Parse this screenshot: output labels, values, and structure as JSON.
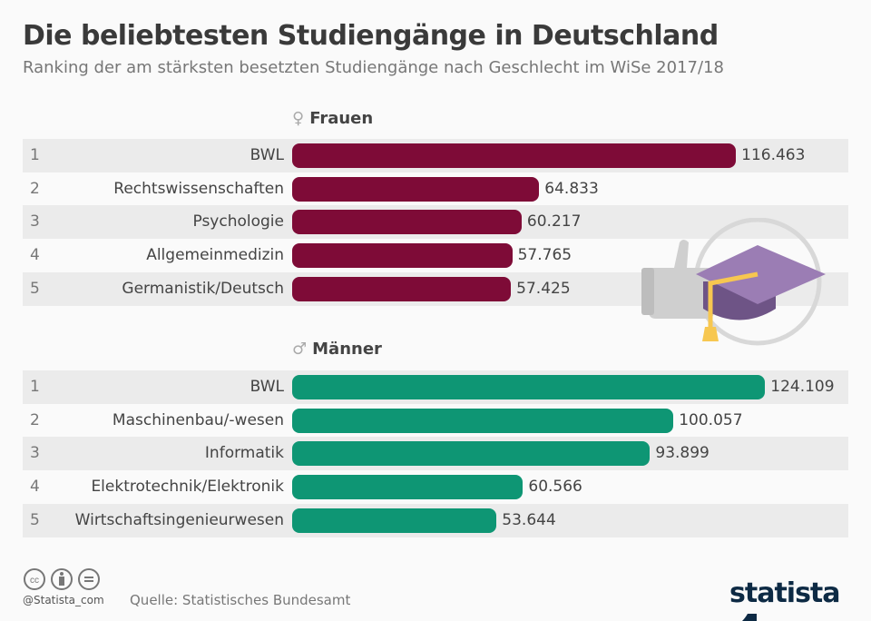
{
  "title": "Die beliebtesten Studiengänge in Deutschland",
  "subtitle": "Ranking der am stärksten besetzten Studiengänge nach Geschlecht im WiSe 2017/18",
  "footer": {
    "handle": "@Statista_com",
    "source": "Quelle: Statistisches Bundesamt",
    "logo": "statista"
  },
  "chart_data": [
    {
      "type": "bar",
      "orientation": "horizontal",
      "title": "Frauen",
      "icon": "female-symbol-icon",
      "color": "#7e0b37",
      "ranks": [
        "1",
        "2",
        "3",
        "4",
        "5"
      ],
      "categories": [
        "BWL",
        "Rechtswissenschaften",
        "Psychologie",
        "Allgemeinmedizin",
        "Germanistik/Deutsch"
      ],
      "values": [
        116463,
        64833,
        60217,
        57765,
        57425
      ],
      "labels": [
        "116.463",
        "64.833",
        "60.217",
        "57.765",
        "57.425"
      ]
    },
    {
      "type": "bar",
      "orientation": "horizontal",
      "title": "Männer",
      "icon": "male-symbol-icon",
      "color": "#0e9674",
      "ranks": [
        "1",
        "2",
        "3",
        "4",
        "5"
      ],
      "categories": [
        "BWL",
        "Maschinenbau/-wesen",
        "Informatik",
        "Elektrotechnik/Elektronik",
        "Wirtschaftsingenieurwesen"
      ],
      "values": [
        124109,
        100057,
        93899,
        60566,
        53644
      ],
      "labels": [
        "124.109",
        "100.057",
        "93.899",
        "60.566",
        "53.644"
      ]
    }
  ]
}
